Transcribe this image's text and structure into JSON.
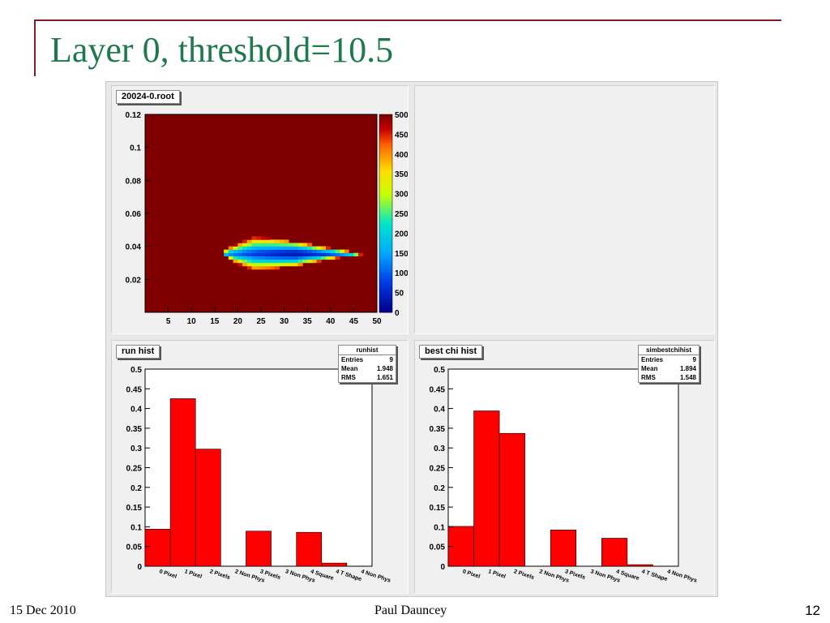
{
  "slide": {
    "title": "Layer 0, threshold=10.5",
    "footer_date": "15 Dec 2010",
    "footer_author": "Paul Dauncey",
    "page_number": "12"
  },
  "colors": {
    "title": "#1e7a4a",
    "accent_line": "#7a1f2a",
    "bar_fill": "#ff0000",
    "heatmap_background": "#800000"
  },
  "chart_data": [
    {
      "type": "heatmap",
      "title": "20024-0.root",
      "x_ticks": [
        5,
        10,
        15,
        20,
        25,
        30,
        35,
        40,
        45,
        50
      ],
      "y_ticks": [
        0.02,
        0.04,
        0.06,
        0.08,
        0.1,
        0.12
      ],
      "xlim": [
        0,
        50
      ],
      "ylim": [
        0,
        0.12
      ],
      "z_ticks": [
        0,
        50,
        100,
        150,
        200,
        250,
        300,
        350,
        400,
        450,
        500
      ],
      "zlim": [
        0,
        500
      ],
      "background_value": 500,
      "region": {
        "description_values": "low-valued lobe",
        "x_range": [
          17,
          47
        ],
        "y_range": [
          0.026,
          0.046
        ],
        "min_value": 30
      }
    },
    {
      "type": "bar",
      "title": "run hist",
      "categories": [
        "0 Pixel",
        "1 Pixel",
        "2 Pixels",
        "2 Non Phys",
        "3 Pixels",
        "3 Non Phys",
        "4 Square",
        "4 T Shape",
        "4 Non Phys"
      ],
      "values": [
        0.094,
        0.425,
        0.297,
        0,
        0.089,
        0,
        0.086,
        0.008,
        0
      ],
      "ylim": [
        0,
        0.5
      ],
      "y_ticks": [
        0,
        0.05,
        0.1,
        0.15,
        0.2,
        0.25,
        0.3,
        0.35,
        0.4,
        0.45,
        0.5
      ],
      "stats": {
        "name": "runhist",
        "entries": "9",
        "mean": "1.948",
        "rms": "1.651"
      }
    },
    {
      "type": "bar",
      "title": "best chi hist",
      "categories": [
        "0 Pixel",
        "1 Pixel",
        "2 Pixels",
        "2 Non Phys",
        "3 Pixels",
        "3 Non Phys",
        "4 Square",
        "4 T Shape",
        "4 Non Phys"
      ],
      "values": [
        0.101,
        0.394,
        0.337,
        0,
        0.092,
        0,
        0.071,
        0.004,
        0
      ],
      "ylim": [
        0,
        0.5
      ],
      "y_ticks": [
        0,
        0.05,
        0.1,
        0.15,
        0.2,
        0.25,
        0.3,
        0.35,
        0.4,
        0.45,
        0.5
      ],
      "stats": {
        "name": "simbestchihist",
        "entries": "9",
        "mean": "1.894",
        "rms": "1.548"
      }
    }
  ],
  "stats_labels": {
    "entries": "Entries",
    "mean": "Mean",
    "rms": "RMS"
  }
}
